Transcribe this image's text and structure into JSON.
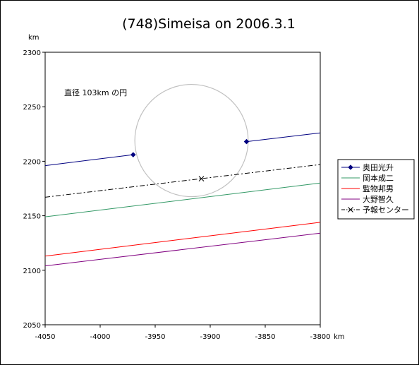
{
  "chart_data": {
    "type": "line",
    "title": "(748)Simeisa on 2006.3.1",
    "x_unit": "km",
    "y_unit": "km",
    "xlim": [
      -4050,
      -3800
    ],
    "ylim": [
      2050,
      2300
    ],
    "x_ticks": [
      -4050,
      -4000,
      -3950,
      -3900,
      -3850,
      -3800
    ],
    "y_ticks": [
      2050,
      2100,
      2150,
      2200,
      2250,
      2300
    ],
    "grid": false,
    "legend_position": "right",
    "annotation": "直径 103km の円",
    "circle": {
      "center": [
        -3917,
        2219
      ],
      "diameter": 103,
      "color": "#c0c0c0"
    },
    "series": [
      {
        "name": "奥田光升",
        "color": "#000080",
        "style": "solid",
        "marker": "diamond",
        "segments": [
          [
            [
              -4050,
              2196
            ],
            [
              -3970,
              2206
            ]
          ],
          [
            [
              -3867,
              2218
            ],
            [
              -3800,
              2226
            ]
          ]
        ],
        "points": [
          [
            -3970,
            2206
          ],
          [
            -3867,
            2218
          ]
        ]
      },
      {
        "name": "岡本成二",
        "color": "#339966",
        "style": "solid",
        "segments": [
          [
            [
              -4050,
              2149
            ],
            [
              -3800,
              2180
            ]
          ]
        ]
      },
      {
        "name": "監物邦男",
        "color": "#ff0000",
        "style": "solid",
        "segments": [
          [
            [
              -4050,
              2113
            ],
            [
              -3800,
              2144
            ]
          ]
        ]
      },
      {
        "name": "大野智久",
        "color": "#800080",
        "style": "solid",
        "segments": [
          [
            [
              -4050,
              2104
            ],
            [
              -3800,
              2134
            ]
          ]
        ]
      },
      {
        "name": "予報センター",
        "color": "#000000",
        "style": "dashdot",
        "marker": "x",
        "segments": [
          [
            [
              -4050,
              2167
            ],
            [
              -3800,
              2197
            ]
          ]
        ],
        "points": [
          [
            -3908,
            2184
          ]
        ]
      }
    ]
  }
}
